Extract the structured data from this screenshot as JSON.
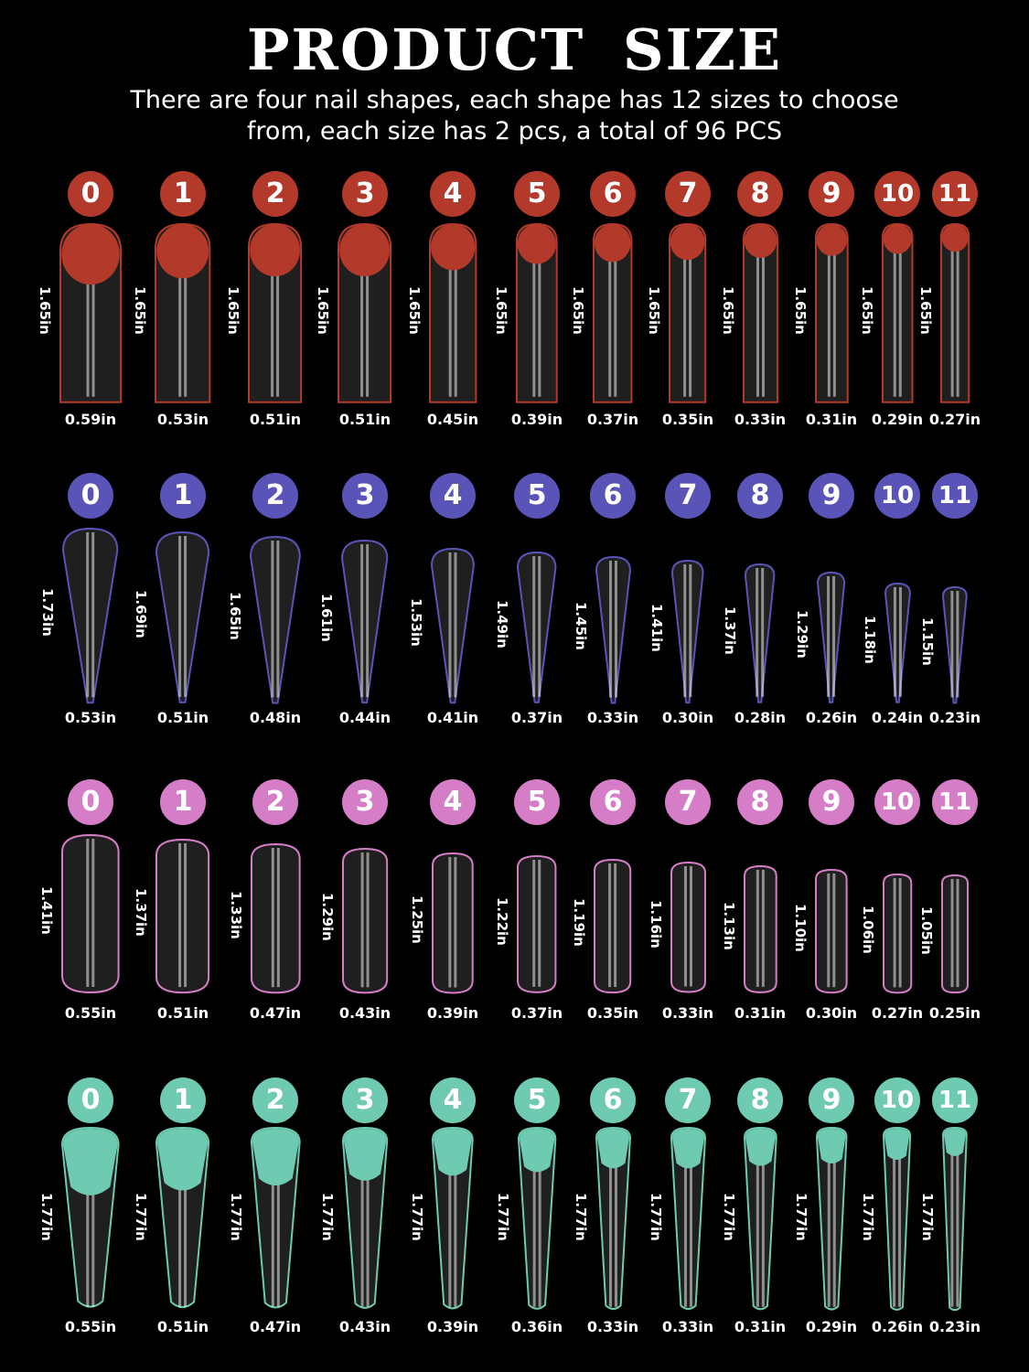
{
  "title": "PRODUCT SIZE",
  "subtitle": [
    "There are four nail shapes, each shape has 12 sizes to choose",
    "from, each size has 2 pcs, a total of 96 PCS"
  ],
  "shapes": [
    {
      "shape": "square",
      "color": "#b3392b",
      "sizes": [
        "0",
        "1",
        "2",
        "3",
        "4",
        "5",
        "6",
        "7",
        "8",
        "9",
        "10",
        "11"
      ],
      "lengths": [
        "1.65in",
        "1.65in",
        "1.65in",
        "1.65in",
        "1.65in",
        "1.65in",
        "1.65in",
        "1.65in",
        "1.65in",
        "1.65in",
        "1.65in",
        "1.65in"
      ],
      "widths": [
        "0.59in",
        "0.53in",
        "0.51in",
        "0.51in",
        "0.45in",
        "0.39in",
        "0.37in",
        "0.35in",
        "0.33in",
        "0.31in",
        "0.29in",
        "0.27in"
      ]
    },
    {
      "shape": "stiletto",
      "color": "#5a54b9",
      "sizes": [
        "0",
        "1",
        "2",
        "3",
        "4",
        "5",
        "6",
        "7",
        "8",
        "9",
        "10",
        "11"
      ],
      "lengths": [
        "1.73in",
        "1.69in",
        "1.65in",
        "1.61in",
        "1.53in",
        "1.49in",
        "1.45in",
        "1.41in",
        "1.37in",
        "1.29in",
        "1.18in",
        "1.15in"
      ],
      "widths": [
        "0.53in",
        "0.51in",
        "0.48in",
        "0.44in",
        "0.41in",
        "0.37in",
        "0.33in",
        "0.30in",
        "0.28in",
        "0.26in",
        "0.24in",
        "0.23in"
      ]
    },
    {
      "shape": "oval",
      "color": "#d67dc7",
      "sizes": [
        "0",
        "1",
        "2",
        "3",
        "4",
        "5",
        "6",
        "7",
        "8",
        "9",
        "10",
        "11"
      ],
      "lengths": [
        "1.41in",
        "1.37in",
        "1.33in",
        "1.29in",
        "1.25in",
        "1.22in",
        "1.19in",
        "1.16in",
        "1.13in",
        "1.10in",
        "1.06in",
        "1.05in"
      ],
      "widths": [
        "0.55in",
        "0.51in",
        "0.47in",
        "0.43in",
        "0.39in",
        "0.37in",
        "0.35in",
        "0.33in",
        "0.31in",
        "0.30in",
        "0.27in",
        "0.25in"
      ]
    },
    {
      "shape": "almond",
      "color": "#6ecab1",
      "sizes": [
        "0",
        "1",
        "2",
        "3",
        "4",
        "5",
        "6",
        "7",
        "8",
        "9",
        "10",
        "11"
      ],
      "lengths": [
        "1.77in",
        "1.77in",
        "1.77in",
        "1.77in",
        "1.77in",
        "1.77in",
        "1.77in",
        "1.77in",
        "1.77in",
        "1.77in",
        "1.77in",
        "1.77in"
      ],
      "widths": [
        "0.55in",
        "0.51in",
        "0.47in",
        "0.43in",
        "0.39in",
        "0.36in",
        "0.33in",
        "0.33in",
        "0.31in",
        "0.29in",
        "0.26in",
        "0.23in"
      ]
    }
  ]
}
